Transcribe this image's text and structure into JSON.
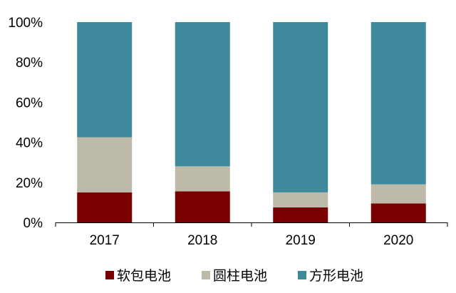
{
  "chart_data": {
    "type": "bar",
    "stacked": true,
    "percent": true,
    "categories": [
      "2017",
      "2018",
      "2019",
      "2020"
    ],
    "series": [
      {
        "name": "软包电池",
        "color": "#7a0000",
        "values": [
          15,
          15.5,
          7.5,
          9.5
        ]
      },
      {
        "name": "圆柱电池",
        "color": "#bdbaa9",
        "values": [
          27.5,
          12.5,
          7.5,
          9.5
        ]
      },
      {
        "name": "方形电池",
        "color": "#3e8a9c",
        "values": [
          57.5,
          72,
          85,
          81
        ]
      }
    ],
    "y_ticks": [
      "0%",
      "20%",
      "40%",
      "60%",
      "80%",
      "100%"
    ],
    "ylim": [
      0,
      100
    ],
    "grid": false,
    "legend_position": "bottom"
  }
}
